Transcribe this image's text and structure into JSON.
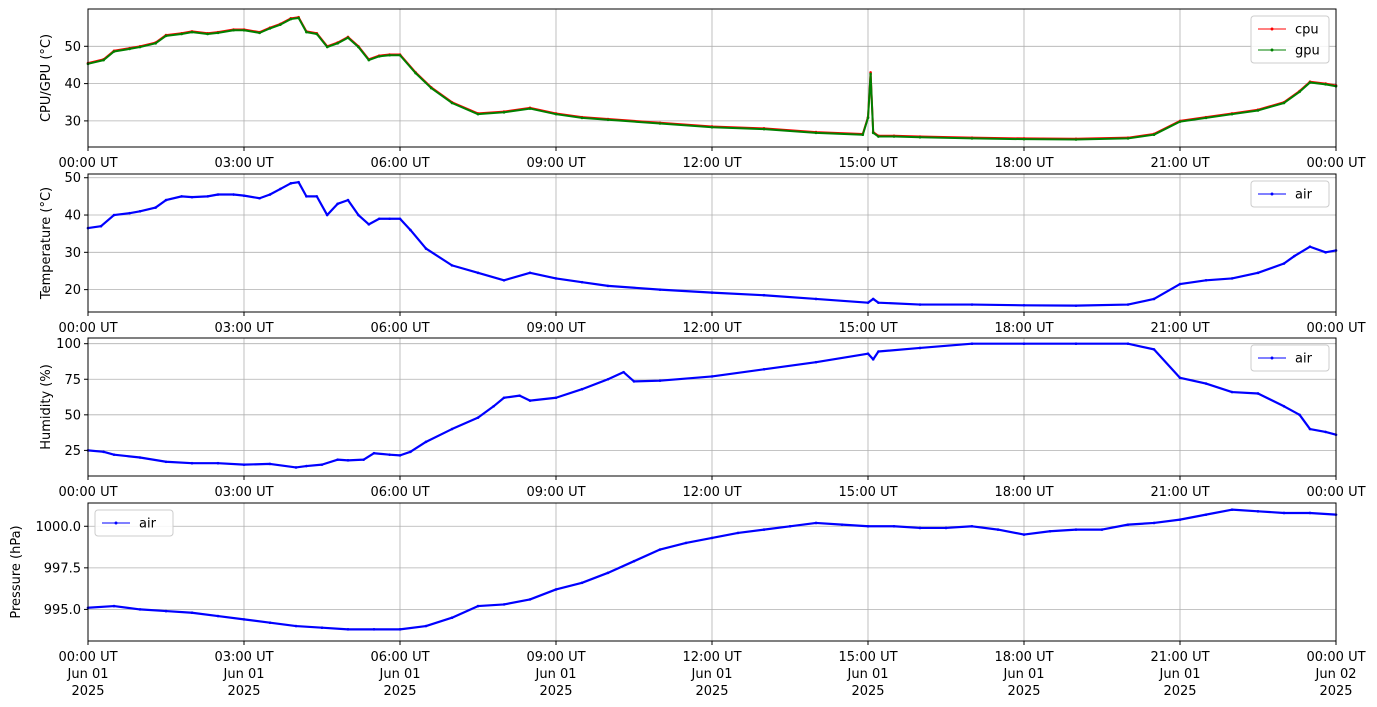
{
  "chart_data": [
    {
      "type": "line",
      "ylabel": "CPU/GPU (°C)",
      "ylim": [
        23,
        60
      ],
      "yticks": [
        30,
        40,
        50
      ],
      "xticks": [
        "00:00 UT",
        "03:00 UT",
        "06:00 UT",
        "09:00 UT",
        "12:00 UT",
        "15:00 UT",
        "18:00 UT",
        "21:00 UT",
        "00:00 UT"
      ],
      "xlim_hours": [
        0,
        24
      ],
      "grid": true,
      "legend": "top-right",
      "series": [
        {
          "name": "cpu",
          "color": "#ff0000",
          "x": [
            0,
            0.3,
            0.5,
            0.8,
            1.0,
            1.3,
            1.5,
            1.8,
            2.0,
            2.3,
            2.5,
            2.8,
            3.0,
            3.3,
            3.5,
            3.7,
            3.9,
            4.05,
            4.2,
            4.4,
            4.6,
            4.8,
            5.0,
            5.2,
            5.4,
            5.6,
            5.8,
            6.0,
            6.3,
            6.6,
            7.0,
            7.5,
            8.0,
            8.5,
            9.0,
            9.5,
            10.0,
            11.0,
            12.0,
            13.0,
            14.0,
            14.9,
            15.0,
            15.05,
            15.1,
            15.2,
            15.5,
            16.0,
            17.0,
            18.0,
            19.0,
            20.0,
            20.5,
            21.0,
            21.5,
            22.0,
            22.5,
            23.0,
            23.3,
            23.5,
            23.8,
            24.0
          ],
          "y": [
            45.5,
            46.5,
            48.8,
            49.5,
            50,
            51,
            53,
            53.5,
            54,
            53.5,
            53.8,
            54.5,
            54.5,
            53.8,
            55,
            56,
            57.5,
            57.8,
            54,
            53.5,
            50,
            51,
            52.5,
            50,
            46.5,
            47.5,
            47.8,
            47.8,
            43,
            39,
            35,
            32,
            32.5,
            33.5,
            32,
            31,
            30.5,
            29.5,
            28.5,
            28,
            27,
            26.5,
            31,
            43,
            27,
            26,
            26,
            25.8,
            25.5,
            25.3,
            25.2,
            25.5,
            26.5,
            30,
            31,
            32,
            33,
            35,
            38,
            40.5,
            40,
            39.5
          ]
        },
        {
          "name": "gpu",
          "color": "#008000",
          "x": [
            0,
            0.3,
            0.5,
            0.8,
            1.0,
            1.3,
            1.5,
            1.8,
            2.0,
            2.3,
            2.5,
            2.8,
            3.0,
            3.3,
            3.5,
            3.7,
            3.9,
            4.05,
            4.2,
            4.4,
            4.6,
            4.8,
            5.0,
            5.2,
            5.4,
            5.6,
            5.8,
            6.0,
            6.3,
            6.6,
            7.0,
            7.5,
            8.0,
            8.5,
            9.0,
            9.5,
            10.0,
            11.0,
            12.0,
            13.0,
            14.0,
            14.9,
            15.0,
            15.05,
            15.1,
            15.2,
            15.5,
            16.0,
            17.0,
            18.0,
            19.0,
            20.0,
            20.5,
            21.0,
            21.5,
            22.0,
            22.5,
            23.0,
            23.3,
            23.5,
            23.8,
            24.0
          ],
          "y": [
            45.3,
            46.3,
            48.6,
            49.3,
            49.8,
            50.8,
            52.8,
            53.3,
            53.8,
            53.3,
            53.6,
            54.3,
            54.3,
            53.6,
            54.8,
            55.8,
            57.3,
            57.6,
            53.8,
            53.3,
            49.8,
            50.8,
            52.3,
            49.8,
            46.3,
            47.3,
            47.6,
            47.6,
            42.8,
            38.8,
            34.8,
            31.8,
            32.3,
            33.3,
            31.8,
            30.8,
            30.3,
            29.3,
            28.3,
            27.8,
            26.8,
            26.3,
            30.8,
            42.6,
            26.8,
            25.8,
            25.8,
            25.6,
            25.3,
            25.1,
            25.0,
            25.3,
            26.3,
            29.8,
            30.8,
            31.8,
            32.8,
            34.8,
            37.8,
            40.3,
            39.8,
            39.3
          ]
        }
      ]
    },
    {
      "type": "line",
      "ylabel": "Temperature (°C)",
      "ylim": [
        14,
        51
      ],
      "yticks": [
        20,
        30,
        40,
        50
      ],
      "xticks": [
        "00:00 UT",
        "03:00 UT",
        "06:00 UT",
        "09:00 UT",
        "12:00 UT",
        "15:00 UT",
        "18:00 UT",
        "21:00 UT",
        "00:00 UT"
      ],
      "xlim_hours": [
        0,
        24
      ],
      "grid": true,
      "legend": "top-right",
      "series": [
        {
          "name": "air",
          "color": "#0000ff",
          "x": [
            0,
            0.25,
            0.5,
            0.8,
            1.0,
            1.3,
            1.5,
            1.8,
            2.0,
            2.3,
            2.5,
            2.8,
            3.0,
            3.3,
            3.5,
            3.7,
            3.9,
            4.05,
            4.2,
            4.4,
            4.6,
            4.8,
            5.0,
            5.2,
            5.4,
            5.6,
            5.8,
            6.0,
            6.2,
            6.5,
            7.0,
            7.5,
            8.0,
            8.5,
            9.0,
            9.5,
            10.0,
            11.0,
            12.0,
            13.0,
            14.0,
            15.0,
            15.1,
            15.2,
            16.0,
            17.0,
            18.0,
            19.0,
            20.0,
            20.5,
            21.0,
            21.5,
            22.0,
            22.5,
            23.0,
            23.2,
            23.5,
            23.8,
            24.0
          ],
          "y": [
            36.5,
            37,
            40,
            40.5,
            41,
            42,
            44,
            45,
            44.8,
            45,
            45.5,
            45.5,
            45.2,
            44.5,
            45.5,
            47,
            48.5,
            48.8,
            45,
            45,
            40,
            43,
            44,
            40,
            37.5,
            39,
            39,
            39,
            36,
            31,
            26.5,
            24.5,
            22.5,
            24.5,
            23,
            22,
            21,
            20,
            19.2,
            18.5,
            17.5,
            16.5,
            17.5,
            16.5,
            16,
            16,
            15.8,
            15.7,
            16,
            17.5,
            21.5,
            22.5,
            23,
            24.5,
            27,
            29,
            31.5,
            30,
            30.5
          ]
        }
      ]
    },
    {
      "type": "line",
      "ylabel": "Humidity (%)",
      "ylim": [
        7,
        104
      ],
      "yticks": [
        25,
        50,
        75,
        100
      ],
      "xticks": [
        "00:00 UT",
        "03:00 UT",
        "06:00 UT",
        "09:00 UT",
        "12:00 UT",
        "15:00 UT",
        "18:00 UT",
        "21:00 UT",
        "00:00 UT"
      ],
      "xlim_hours": [
        0,
        24
      ],
      "grid": true,
      "legend": "top-right",
      "series": [
        {
          "name": "air",
          "color": "#0000ff",
          "x": [
            0,
            0.3,
            0.5,
            1.0,
            1.5,
            2.0,
            2.5,
            3.0,
            3.5,
            4.0,
            4.2,
            4.5,
            4.8,
            5.0,
            5.3,
            5.5,
            5.8,
            6.0,
            6.2,
            6.5,
            7.0,
            7.5,
            7.8,
            8.0,
            8.3,
            8.5,
            9.0,
            9.5,
            10.0,
            10.3,
            10.5,
            11.0,
            12.0,
            13.0,
            14.0,
            15.0,
            15.1,
            15.2,
            16.0,
            17.0,
            18.0,
            19.0,
            20.0,
            20.5,
            21.0,
            21.5,
            22.0,
            22.5,
            23.0,
            23.3,
            23.5,
            23.8,
            24.0
          ],
          "y": [
            25,
            24,
            22,
            20,
            17,
            16,
            16,
            15,
            15.5,
            13,
            14,
            15,
            18.5,
            18,
            18.5,
            23,
            22,
            21.5,
            24,
            31,
            40,
            48,
            56,
            62,
            63.5,
            60,
            62,
            68,
            75,
            80,
            73.5,
            74,
            77,
            82,
            87,
            93,
            89,
            94.5,
            97,
            100,
            100,
            100,
            100,
            96,
            76,
            72,
            66,
            65,
            56,
            50,
            40,
            38,
            36
          ]
        }
      ]
    },
    {
      "type": "line",
      "ylabel": "Pressure (hPa)",
      "ylim": [
        993.1,
        1001.4
      ],
      "yticks": [
        995.0,
        997.5,
        1000.0
      ],
      "ytick_labels": [
        "995.0",
        "997.5",
        "1000.0"
      ],
      "xticks": [
        "00:00 UT",
        "03:00 UT",
        "06:00 UT",
        "09:00 UT",
        "12:00 UT",
        "15:00 UT",
        "18:00 UT",
        "21:00 UT",
        "00:00 UT"
      ],
      "xtick_dates": [
        "Jun 01",
        "Jun 01",
        "Jun 01",
        "Jun 01",
        "Jun 01",
        "Jun 01",
        "Jun 01",
        "Jun 01",
        "Jun 02"
      ],
      "xtick_years": [
        "2025",
        "2025",
        "2025",
        "2025",
        "2025",
        "2025",
        "2025",
        "2025",
        "2025"
      ],
      "xlim_hours": [
        0,
        24
      ],
      "grid": true,
      "legend": "top-left",
      "series": [
        {
          "name": "air",
          "color": "#0000ff",
          "x": [
            0,
            0.5,
            1.0,
            1.5,
            2.0,
            2.5,
            3.0,
            3.5,
            4.0,
            4.5,
            5.0,
            5.5,
            6.0,
            6.5,
            7.0,
            7.5,
            8.0,
            8.5,
            9.0,
            9.5,
            10.0,
            10.5,
            11.0,
            11.5,
            12.0,
            12.5,
            13.0,
            13.5,
            14.0,
            14.5,
            15.0,
            15.5,
            16.0,
            16.5,
            17.0,
            17.5,
            18.0,
            18.5,
            19.0,
            19.5,
            20.0,
            20.5,
            21.0,
            21.5,
            22.0,
            22.5,
            23.0,
            23.5,
            24.0
          ],
          "y": [
            995.1,
            995.2,
            995.0,
            994.9,
            994.8,
            994.6,
            994.4,
            994.2,
            994.0,
            993.9,
            993.8,
            993.8,
            993.8,
            994.0,
            994.5,
            995.2,
            995.3,
            995.6,
            996.2,
            996.6,
            997.2,
            997.9,
            998.6,
            999.0,
            999.3,
            999.6,
            999.8,
            1000.0,
            1000.2,
            1000.1,
            1000.0,
            1000.0,
            999.9,
            999.9,
            1000.0,
            999.8,
            999.5,
            999.7,
            999.8,
            999.8,
            1000.1,
            1000.2,
            1000.4,
            1000.7,
            1001.0,
            1000.9,
            1000.8,
            1000.8,
            1000.7
          ]
        }
      ]
    }
  ]
}
